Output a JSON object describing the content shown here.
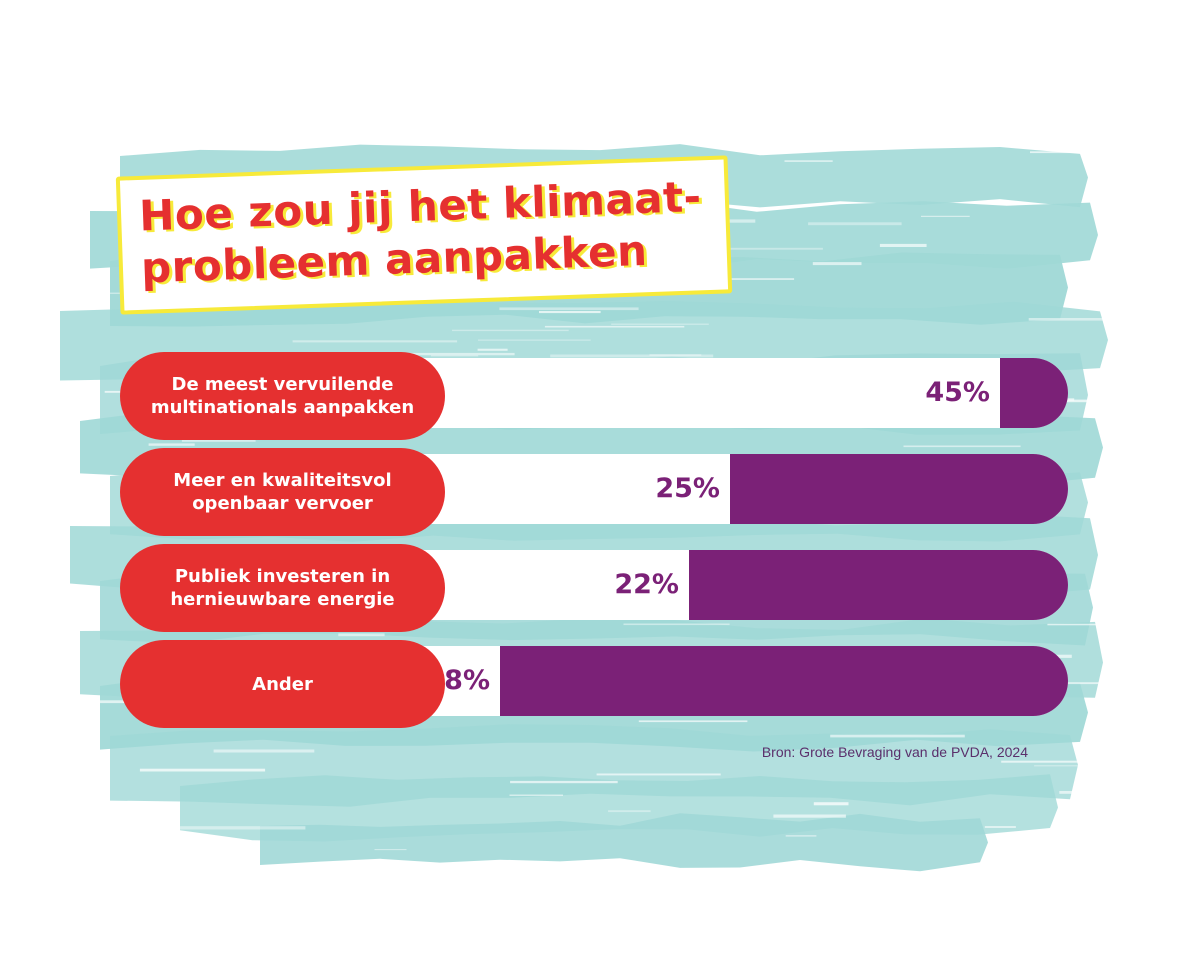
{
  "colors": {
    "background": "#ffffff",
    "brush": "#9fd8d6",
    "label_bg": "#e53030",
    "bar": "#7b2177",
    "title": "#e53030",
    "title_shadow": "#f7ea3a",
    "source_text": "#5a2f6b"
  },
  "chart_data": {
    "type": "bar",
    "orientation": "horizontal",
    "title": "Hoe zou jij het klimaat-probleem aanpakken",
    "title_lines": [
      "Hoe zou jij het klimaat-",
      "probleem aanpakken"
    ],
    "categories": [
      "De meest vervuilende multinationals aanpakken",
      "Meer en kwaliteitsvol openbaar vervoer",
      "Publiek investeren in hernieuwbare energie",
      "Ander"
    ],
    "values": [
      45,
      25,
      22,
      8
    ],
    "value_labels": [
      "45%",
      "25%",
      "22%",
      "8%"
    ],
    "unit": "%",
    "source": "Bron: Grote Bevraging van de PVDA, 2024",
    "bar_direction": "right-to-left"
  }
}
